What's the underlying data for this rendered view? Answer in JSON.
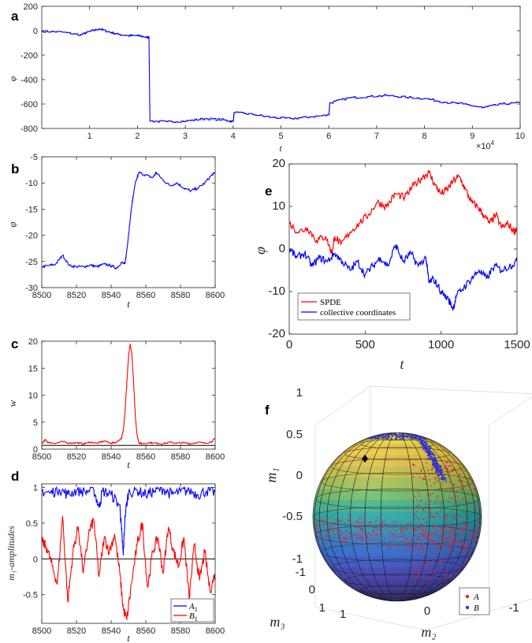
{
  "chart_data": [
    {
      "panel": "a",
      "type": "line",
      "xlabel": "t",
      "ylabel": "φ",
      "x_exponent": "×10^4",
      "xlim": [
        0,
        100000
      ],
      "ylim": [
        -800,
        200
      ],
      "xticks": [
        1,
        2,
        3,
        4,
        5,
        6,
        7,
        8,
        9,
        10
      ],
      "yticks": [
        200,
        0,
        -200,
        -400,
        -600,
        -800
      ],
      "series": [
        {
          "color": "#0000ff",
          "x": [
            0,
            4000,
            8000,
            10000,
            12000,
            14000,
            16000,
            18000,
            20000,
            22000,
            22400,
            22600,
            26000,
            30000,
            34000,
            38000,
            40000,
            40200,
            44000,
            48000,
            52000,
            56000,
            60000,
            60200,
            64000,
            68000,
            72000,
            76000,
            80000,
            84000,
            88000,
            92000,
            96000,
            100000
          ],
          "y": [
            -5,
            -10,
            -35,
            -5,
            15,
            -10,
            -30,
            -40,
            -40,
            -55,
            -55,
            -740,
            -745,
            -740,
            -720,
            -730,
            -745,
            -670,
            -685,
            -710,
            -720,
            -705,
            -690,
            -590,
            -550,
            -540,
            -530,
            -545,
            -555,
            -585,
            -600,
            -630,
            -600,
            -590
          ]
        }
      ]
    },
    {
      "panel": "b",
      "type": "line",
      "xlabel": "t",
      "ylabel": "φ",
      "xlim": [
        8500,
        8600
      ],
      "ylim": [
        -30,
        -5
      ],
      "xticks": [
        8500,
        8520,
        8540,
        8560,
        8580,
        8600
      ],
      "yticks": [
        -5,
        -10,
        -15,
        -20,
        -25,
        -30
      ],
      "series": [
        {
          "color": "#0000ff",
          "x": [
            8500,
            8504,
            8508,
            8512,
            8516,
            8520,
            8524,
            8528,
            8532,
            8536,
            8540,
            8543,
            8546,
            8548,
            8549,
            8550,
            8551,
            8552,
            8553,
            8554,
            8556,
            8560,
            8564,
            8566,
            8570,
            8574,
            8578,
            8582,
            8586,
            8590,
            8594,
            8598,
            8600
          ],
          "y": [
            -26,
            -25.8,
            -25.5,
            -23.8,
            -25.8,
            -26,
            -26,
            -25.7,
            -26,
            -25.5,
            -25.8,
            -26.3,
            -25.2,
            -25.5,
            -23,
            -20,
            -17,
            -14,
            -12,
            -10,
            -8,
            -8.5,
            -9,
            -8,
            -9.5,
            -10.5,
            -10,
            -11,
            -11.5,
            -11,
            -10,
            -8.5,
            -8
          ]
        }
      ]
    },
    {
      "panel": "c",
      "type": "line",
      "xlabel": "t",
      "ylabel": "w",
      "xlim": [
        8500,
        8600
      ],
      "ylim": [
        0,
        20
      ],
      "xticks": [
        8500,
        8520,
        8540,
        8560,
        8580,
        8600
      ],
      "yticks": [
        0,
        5,
        10,
        15,
        20
      ],
      "series": [
        {
          "color": "#ff0000",
          "x": [
            8500,
            8502,
            8504,
            8508,
            8512,
            8516,
            8520,
            8524,
            8528,
            8532,
            8536,
            8540,
            8543,
            8546,
            8547,
            8548,
            8549,
            8550,
            8551,
            8552,
            8553,
            8554,
            8555,
            8556,
            8558,
            8562,
            8566,
            8570,
            8574,
            8578,
            8582,
            8586,
            8590,
            8594,
            8598,
            8600
          ],
          "y": [
            1.0,
            1.7,
            1.2,
            1.1,
            1.4,
            1.1,
            1.2,
            1.0,
            1.3,
            1.1,
            1.5,
            1.1,
            1.3,
            2.0,
            3.5,
            7.0,
            12.0,
            17.0,
            19.5,
            17.5,
            12.0,
            6.0,
            2.5,
            1.2,
            1.0,
            1.2,
            1.1,
            1.0,
            1.3,
            1.1,
            1.2,
            1.0,
            1.3,
            1.1,
            1.4,
            2.0
          ]
        }
      ]
    },
    {
      "panel": "d",
      "type": "line",
      "xlabel": "t",
      "ylabel": "m1-amplitudes",
      "xlim": [
        8500,
        8600
      ],
      "ylim": [
        -0.9,
        1.05
      ],
      "xticks": [
        8500,
        8520,
        8540,
        8560,
        8580,
        8600
      ],
      "yticks": [
        1,
        0.5,
        0,
        -0.5
      ],
      "legend": [
        "A1",
        "B1"
      ],
      "legend_loc": "bottom-right",
      "series": [
        {
          "name": "A1",
          "color": "#0000ff",
          "x": [
            8500,
            8505,
            8510,
            8515,
            8520,
            8525,
            8530,
            8533,
            8535,
            8540,
            8545,
            8546,
            8547,
            8548,
            8550,
            8555,
            8560,
            8565,
            8570,
            8575,
            8580,
            8585,
            8590,
            8595,
            8600
          ],
          "y": [
            0.95,
            0.92,
            0.98,
            0.9,
            0.96,
            0.94,
            0.97,
            0.72,
            0.95,
            0.9,
            0.75,
            0.4,
            0.05,
            0.6,
            0.93,
            0.96,
            0.9,
            0.95,
            0.98,
            0.9,
            0.94,
            0.96,
            0.9,
            0.95,
            0.93
          ]
        },
        {
          "name": "B1",
          "color": "#ff0000",
          "x": [
            8500,
            8503,
            8506,
            8509,
            8512,
            8515,
            8518,
            8521,
            8524,
            8527,
            8530,
            8533,
            8536,
            8539,
            8542,
            8545,
            8547,
            8549,
            8552,
            8555,
            8558,
            8561,
            8564,
            8567,
            8570,
            8573,
            8576,
            8579,
            8582,
            8585,
            8588,
            8591,
            8594,
            8597,
            8600
          ],
          "y": [
            0.25,
            0.15,
            -0.1,
            -0.35,
            0.6,
            -0.6,
            0.1,
            0.45,
            -0.2,
            0.35,
            0.55,
            -0.25,
            0.3,
            0.1,
            0.35,
            -0.2,
            -0.7,
            -0.85,
            -0.3,
            0.2,
            0.5,
            -0.4,
            0.1,
            0.3,
            -0.2,
            0.45,
            0.1,
            -0.1,
            0.3,
            -0.55,
            0.2,
            -0.3,
            0.1,
            -0.45,
            -0.2
          ]
        }
      ]
    },
    {
      "panel": "e",
      "type": "line",
      "xlabel": "t",
      "ylabel": "φ",
      "xlim": [
        0,
        1500
      ],
      "ylim": [
        -20,
        20
      ],
      "xticks": [
        0,
        500,
        1000,
        1500
      ],
      "yticks": [
        20,
        10,
        0,
        -10,
        -20
      ],
      "legend": [
        "SPDE",
        "collective coordinates"
      ],
      "legend_loc": "bottom-left",
      "series": [
        {
          "name": "SPDE",
          "color": "#ff0000",
          "x": [
            0,
            60,
            120,
            180,
            240,
            280,
            300,
            340,
            400,
            460,
            520,
            580,
            640,
            700,
            760,
            820,
            880,
            920,
            960,
            1000,
            1040,
            1080,
            1120,
            1160,
            1200,
            1240,
            1280,
            1320,
            1360,
            1400,
            1440,
            1480,
            1500
          ],
          "y": [
            6,
            4,
            5,
            2,
            3,
            -1,
            3,
            1,
            4,
            6,
            8,
            11,
            10,
            13,
            12,
            15,
            17,
            18,
            15,
            13,
            14,
            16,
            17,
            14,
            11,
            10,
            8,
            6,
            8,
            5,
            6,
            4,
            5
          ]
        },
        {
          "name": "collective coordinates",
          "color": "#0000ff",
          "x": [
            0,
            50,
            100,
            150,
            200,
            250,
            300,
            350,
            400,
            450,
            500,
            550,
            600,
            650,
            700,
            750,
            800,
            850,
            900,
            920,
            950,
            1000,
            1050,
            1080,
            1100,
            1150,
            1200,
            1250,
            1300,
            1350,
            1400,
            1450,
            1500
          ],
          "y": [
            0,
            -2,
            -1,
            -4,
            -2,
            -3,
            -1,
            -3,
            -5,
            -3,
            -6,
            -4,
            -2,
            -4,
            1,
            -3,
            -1,
            -4,
            -2,
            -8,
            -7,
            -10,
            -12,
            -14,
            -11,
            -9,
            -7,
            -5,
            -7,
            -4,
            -5,
            -4,
            -3
          ]
        }
      ]
    },
    {
      "panel": "f",
      "type": "scatter",
      "xlabel": "m2",
      "ylabel": "m1",
      "zlabel": "m3",
      "zticks": [
        1,
        0.5,
        0,
        -0.5,
        -1
      ],
      "m2ticks": [
        1,
        0,
        -1
      ],
      "m3ticks": [
        -1,
        0,
        1
      ],
      "legend": [
        "A",
        "B"
      ],
      "legend_loc": "bottom-right",
      "series": [
        {
          "name": "A",
          "color": "#e0203a"
        },
        {
          "name": "B",
          "color": "#3030d0"
        }
      ]
    }
  ],
  "labels": {
    "a": "a",
    "b": "b",
    "c": "c",
    "d": "d",
    "e": "e",
    "f": "f"
  },
  "text": {
    "t": "t",
    "phi": "φ",
    "w": "w",
    "m1amp": "m₁-amplitudes",
    "m1": "m₁",
    "m2": "m₂",
    "m3": "m₃",
    "exp_base": "×10",
    "exp_pow": "4",
    "legA1": "A",
    "legB1": "B",
    "sub1": "1",
    "spde": "SPDE",
    "cc": "collective coordinates",
    "legA": "A",
    "legB": "B"
  },
  "colors": {
    "blue": "#0000ff",
    "red": "#ff0000",
    "axis": "#262626"
  }
}
